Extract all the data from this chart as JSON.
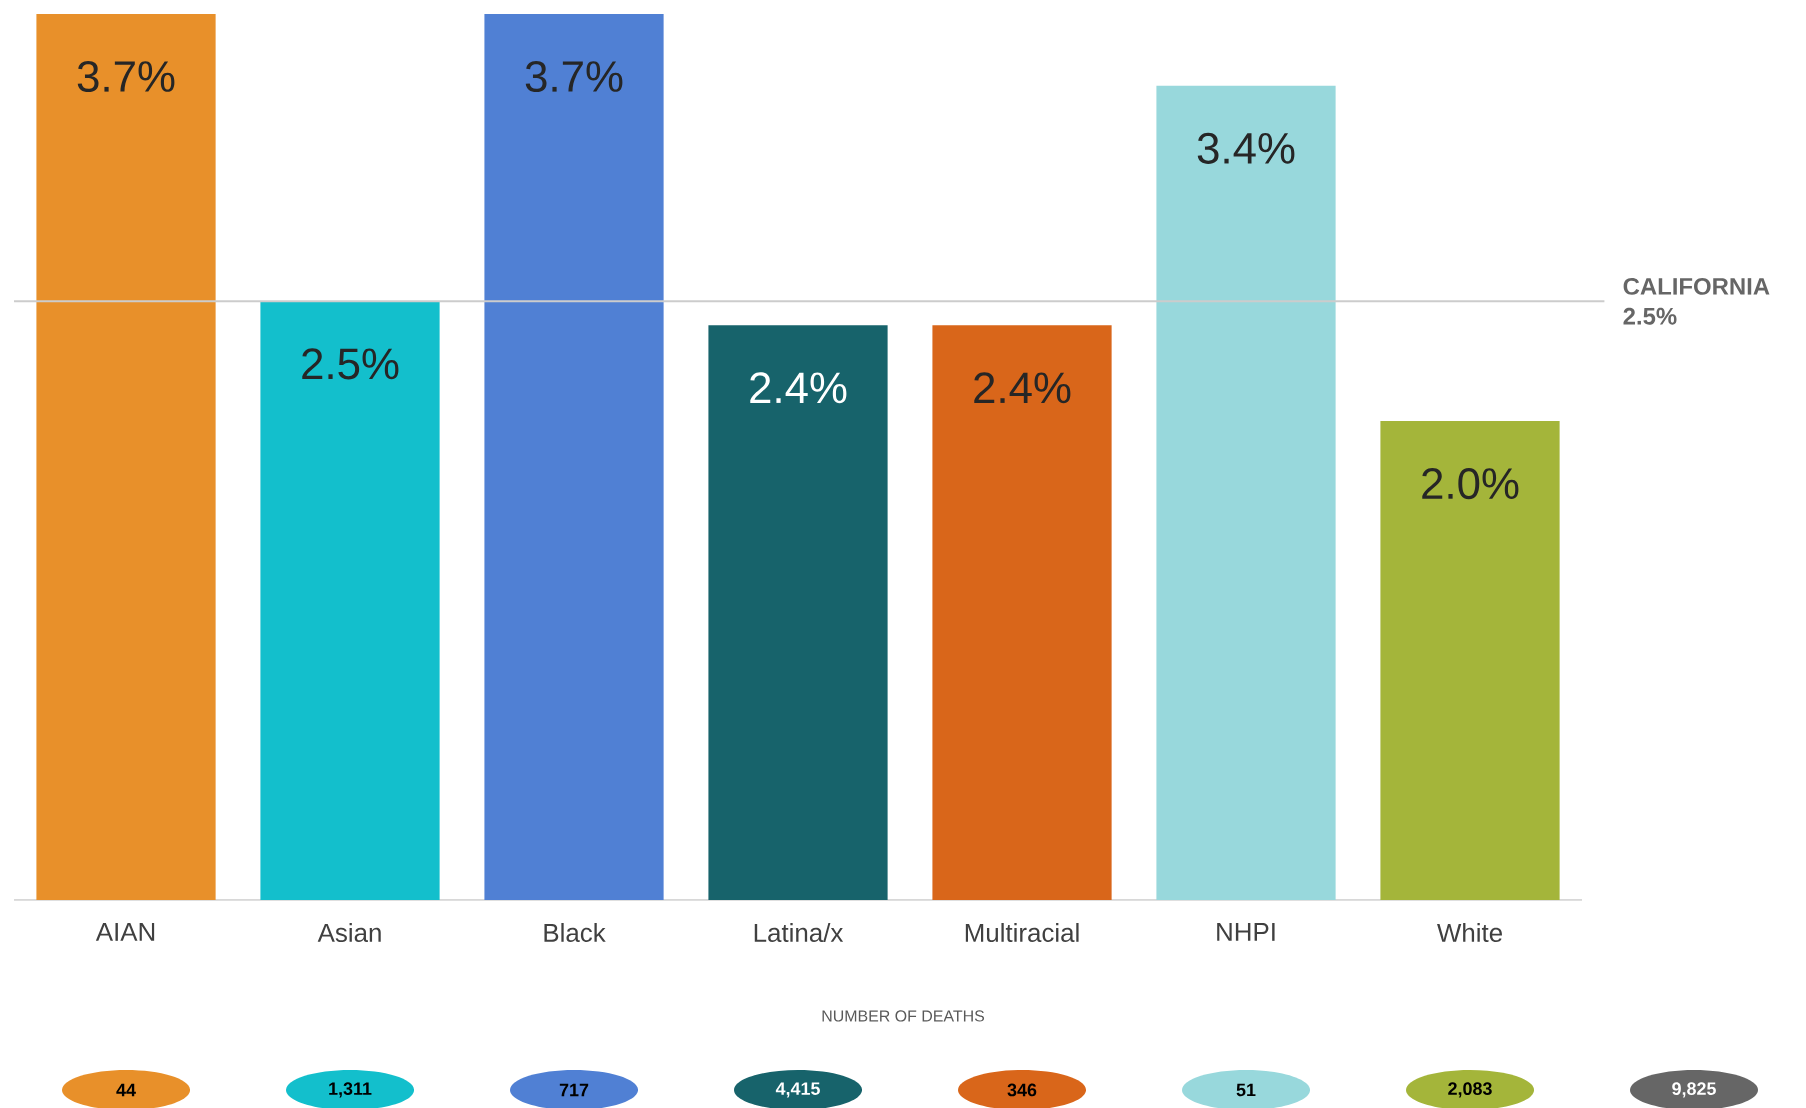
{
  "chart_data": {
    "type": "bar",
    "categories": [
      "AIAN",
      "Asian",
      "Black",
      "Latina/x",
      "Multiracial",
      "NHPI",
      "White"
    ],
    "values": [
      3.7,
      2.5,
      3.7,
      2.4,
      2.4,
      3.4,
      2.0
    ],
    "value_labels": [
      "3.7%",
      "2.5%",
      "3.7%",
      "2.4%",
      "2.4%",
      "3.4%",
      "2.0%"
    ],
    "colors": [
      "#e8902a",
      "#13bfcc",
      "#5080d4",
      "#17636b",
      "#d9661a",
      "#98d8dc",
      "#a4b53a"
    ],
    "ylim": [
      0,
      3.7
    ],
    "ref_lines": [
      {
        "axis": "y",
        "value": 2.5,
        "label": "CALIFORNIA 2.5%",
        "color": "#cccccc"
      }
    ],
    "annotations": [
      "NUMBER OF DEATHS",
      "44",
      "1,311",
      "717",
      "4,415",
      "346",
      "51",
      "2,083",
      "9,825"
    ]
  }
}
